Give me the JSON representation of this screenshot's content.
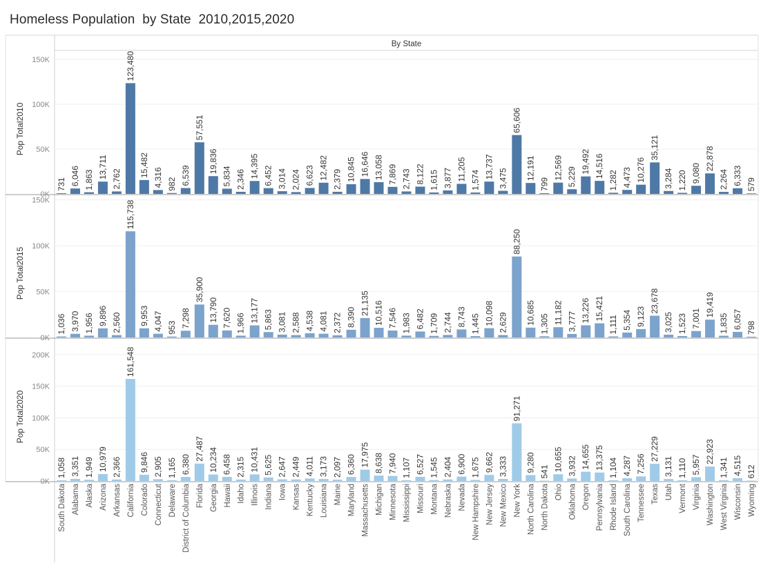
{
  "title": "Homeless Population  by State  2010,2015,2020",
  "chart_data": {
    "type": "bar",
    "header": "By State",
    "categories": [
      "South Dakota",
      "Alabama",
      "Alaska",
      "Arizona",
      "Arkansas",
      "California",
      "Colorado",
      "Connecticut",
      "Delaware",
      "District of Columbia",
      "Florida",
      "Georgia",
      "Hawaii",
      "Idaho",
      "Illinois",
      "Indiana",
      "Iowa",
      "Kansas",
      "Kentucky",
      "Louisiana",
      "Maine",
      "Maryland",
      "Massachusetts",
      "Michigan",
      "Minnesota",
      "Mississippi",
      "Missouri",
      "Montana",
      "Nebraska",
      "Nevada",
      "New Hampshire",
      "New Jersey",
      "New Mexico",
      "New York",
      "North Carolina",
      "North Dakota",
      "Ohio",
      "Oklahoma",
      "Oregon",
      "Pennsylvania",
      "Rhode Island",
      "South Carolina",
      "Tennessee",
      "Texas",
      "Utah",
      "Vermont",
      "Virginia",
      "Washington",
      "West Virginia",
      "Wisconsin",
      "Wyoming"
    ],
    "series": [
      {
        "name": "Pop Total2010",
        "color": "#4e79a7",
        "ylim": [
          0,
          160000
        ],
        "ticks": [
          0,
          50000,
          100000,
          150000
        ],
        "tick_labels": [
          "0K",
          "50K",
          "100K",
          "150K"
        ],
        "values": [
          731,
          6046,
          1863,
          13711,
          2762,
          123480,
          15482,
          4316,
          982,
          6539,
          57551,
          19836,
          5834,
          2346,
          14395,
          6452,
          3014,
          2024,
          6623,
          12482,
          2379,
          10845,
          16646,
          13058,
          7869,
          2743,
          8122,
          1615,
          3877,
          11205,
          1574,
          13737,
          3475,
          65606,
          12191,
          799,
          12569,
          5229,
          19492,
          14516,
          1282,
          4473,
          10276,
          35121,
          3284,
          1220,
          9080,
          22878,
          2264,
          6333,
          579
        ],
        "labels": [
          "731",
          "6,046",
          "1,863",
          "13,711",
          "2,762",
          "123,480",
          "15,482",
          "4,316",
          "982",
          "6,539",
          "57,551",
          "19,836",
          "5,834",
          "2,346",
          "14,395",
          "6,452",
          "3,014",
          "2,024",
          "6,623",
          "12,482",
          "2,379",
          "10,845",
          "16,646",
          "13,058",
          "7,869",
          "2,743",
          "8,122",
          "1,615",
          "3,877",
          "11,205",
          "1,574",
          "13,737",
          "3,475",
          "65,606",
          "12,191",
          "799",
          "12,569",
          "5,229",
          "19,492",
          "14,516",
          "1,282",
          "4,473",
          "10,276",
          "35,121",
          "3,284",
          "1,220",
          "9,080",
          "22,878",
          "2,264",
          "6,333",
          "579"
        ]
      },
      {
        "name": "Pop Total2015",
        "color": "#7ba3cc",
        "ylim": [
          0,
          155000
        ],
        "ticks": [
          0,
          50000,
          100000,
          150000
        ],
        "tick_labels": [
          "0K",
          "50K",
          "100K",
          "150K"
        ],
        "values": [
          1036,
          3970,
          1956,
          9896,
          2560,
          115738,
          9953,
          4047,
          953,
          7298,
          35900,
          13790,
          7620,
          1966,
          13177,
          5863,
          3081,
          2588,
          4538,
          4081,
          2372,
          8390,
          21135,
          10516,
          7546,
          1983,
          6482,
          1709,
          2744,
          8743,
          1445,
          10098,
          2629,
          88250,
          10685,
          1305,
          11182,
          3777,
          13226,
          15421,
          1111,
          5354,
          9123,
          23678,
          3025,
          1523,
          7001,
          19419,
          1835,
          6057,
          798
        ],
        "labels": [
          "1,036",
          "3,970",
          "1,956",
          "9,896",
          "2,560",
          "115,738",
          "9,953",
          "4,047",
          "953",
          "7,298",
          "35,900",
          "13,790",
          "7,620",
          "1,966",
          "13,177",
          "5,863",
          "3,081",
          "2,588",
          "4,538",
          "4,081",
          "2,372",
          "8,390",
          "21,135",
          "10,516",
          "7,546",
          "1,983",
          "6,482",
          "1,709",
          "2,744",
          "8,743",
          "1,445",
          "10,098",
          "2,629",
          "88,250",
          "10,685",
          "1,305",
          "11,182",
          "3,777",
          "13,226",
          "15,421",
          "1,111",
          "5,354",
          "9,123",
          "23,678",
          "3,025",
          "1,523",
          "7,001",
          "19,419",
          "1,835",
          "6,057",
          "798"
        ]
      },
      {
        "name": "Pop Total2020",
        "color": "#a0cbe8",
        "ylim": [
          0,
          225000
        ],
        "ticks": [
          0,
          50000,
          100000,
          150000,
          200000
        ],
        "tick_labels": [
          "0K",
          "50K",
          "100K",
          "150K",
          "200K"
        ],
        "values": [
          1058,
          3351,
          1949,
          10979,
          2366,
          161548,
          9846,
          2905,
          1165,
          6380,
          27487,
          10234,
          6458,
          2315,
          10431,
          5625,
          2647,
          2449,
          4011,
          3173,
          2097,
          6360,
          17975,
          8638,
          7940,
          1107,
          6527,
          1545,
          2404,
          6900,
          1675,
          9662,
          3333,
          91271,
          9280,
          541,
          10655,
          3932,
          14655,
          13375,
          1104,
          4287,
          7256,
          27229,
          3131,
          1110,
          5957,
          22923,
          1341,
          4515,
          612
        ],
        "labels": [
          "1,058",
          "3,351",
          "1,949",
          "10,979",
          "2,366",
          "161,548",
          "9,846",
          "2,905",
          "1,165",
          "6,380",
          "27,487",
          "10,234",
          "6,458",
          "2,315",
          "10,431",
          "5,625",
          "2,647",
          "2,449",
          "4,011",
          "3,173",
          "2,097",
          "6,360",
          "17,975",
          "8,638",
          "7,940",
          "1,107",
          "6,527",
          "1,545",
          "2,404",
          "6,900",
          "1,675",
          "9,662",
          "3,333",
          "91,271",
          "9,280",
          "541",
          "10,655",
          "3,932",
          "14,655",
          "13,375",
          "1,104",
          "4,287",
          "7,256",
          "27,229",
          "3,131",
          "1,110",
          "5,957",
          "22,923",
          "1,341",
          "4,515",
          "612"
        ]
      }
    ],
    "grid": true,
    "legend": "none"
  }
}
